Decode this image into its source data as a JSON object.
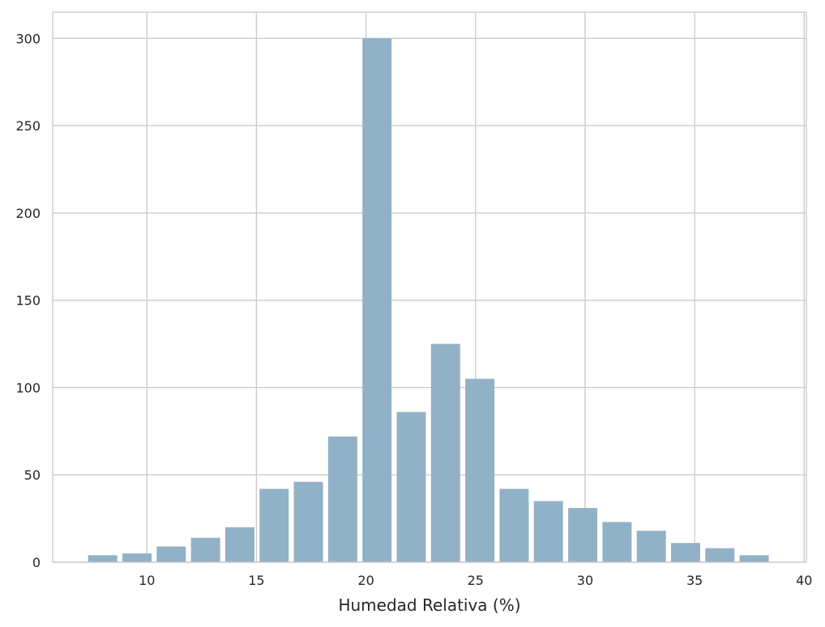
{
  "chart_data": {
    "type": "bar",
    "title": "",
    "xlabel": "Humedad Relativa (%)",
    "ylabel": "",
    "xlim": [
      5.7,
      40.1
    ],
    "ylim": [
      0,
      315
    ],
    "xticks": [
      10,
      15,
      20,
      25,
      30,
      35,
      40
    ],
    "yticks": [
      0,
      50,
      100,
      150,
      200,
      250,
      300
    ],
    "grid": true,
    "bar_color": "#91b1c6",
    "bin_start": 7.2,
    "bin_width": 1.565,
    "bar_fraction": 0.85,
    "values": [
      4,
      5,
      9,
      14,
      20,
      42,
      46,
      72,
      300,
      86,
      125,
      105,
      42,
      35,
      31,
      23,
      18,
      11,
      8,
      4
    ]
  }
}
